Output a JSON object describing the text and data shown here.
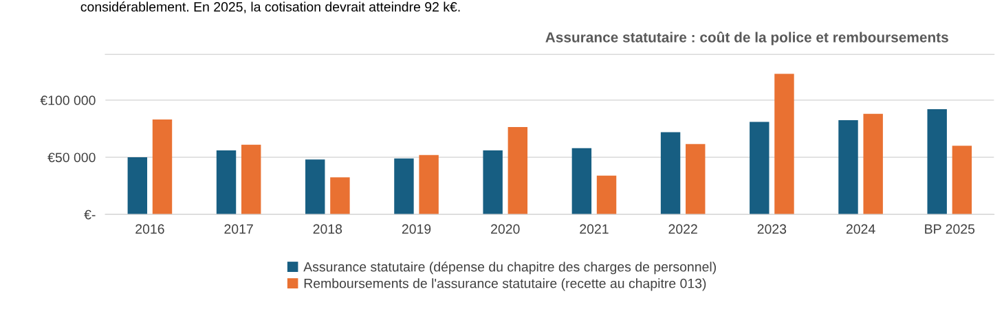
{
  "chart_data": {
    "type": "bar",
    "title": "Assurance statutaire : coût de la police et remboursements",
    "annotations": [
      "considérablement. En 2025, la cotisation devrait atteindre 92 k€."
    ],
    "categories": [
      "2016",
      "2017",
      "2018",
      "2019",
      "2020",
      "2021",
      "2022",
      "2023",
      "2024",
      "BP 2025"
    ],
    "series": [
      {
        "name": "Assurance statutaire (dépense du chapitre des charges de personnel)",
        "color": "#175e82",
        "values": [
          50000,
          56000,
          48000,
          49000,
          56000,
          58000,
          72000,
          81000,
          82500,
          92000
        ]
      },
      {
        "name": "Remboursements de l'assurance statutaire (recette au chapitre 013)",
        "color": "#e97132",
        "values": [
          83000,
          61000,
          32500,
          52000,
          76500,
          34000,
          61500,
          123000,
          88000,
          60000
        ]
      }
    ],
    "ylim": [
      0,
      140000
    ],
    "yticks": [
      {
        "value": 0,
        "label": "€-"
      },
      {
        "value": 50000,
        "label": "€50 000"
      },
      {
        "value": 100000,
        "label": "€100 000"
      }
    ],
    "grid": "y",
    "legend": "bottom"
  }
}
